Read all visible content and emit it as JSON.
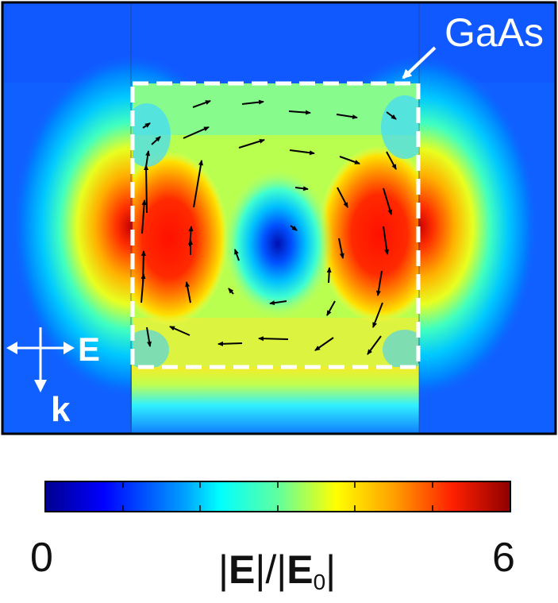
{
  "material_label": "GaAs",
  "polarization_label": "E",
  "wavevector_label": "k",
  "colorbar": {
    "min_label": "0",
    "max_label": "6",
    "title_parts": [
      "|",
      "E",
      "|/|",
      "E",
      "0",
      "|"
    ],
    "range": [
      0,
      6
    ],
    "colors": [
      "#00008f",
      "#0000ff",
      "#00a0ff",
      "#00ffff",
      "#60ff9f",
      "#ffff00",
      "#ff9f00",
      "#ff2000",
      "#8f0000"
    ]
  },
  "colors": {
    "background_field": "#1060ff",
    "frame": "#000000",
    "dashed_outline": "#ffffff",
    "arrow": "#000000",
    "annotation": "#ffffff"
  }
}
